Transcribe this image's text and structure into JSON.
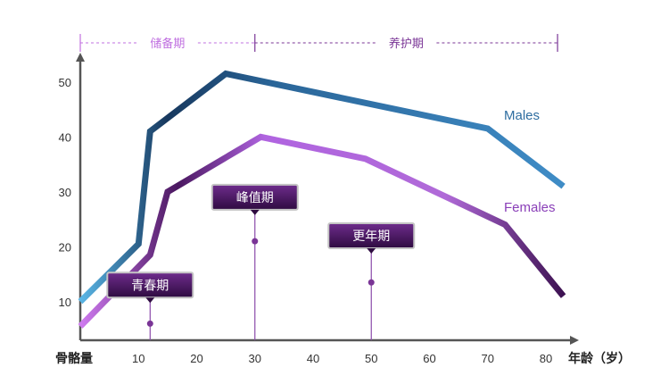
{
  "chart_data": {
    "type": "line",
    "xlabel": "年龄（岁）",
    "ylabel": "骨骼量",
    "xlim": [
      0,
      85
    ],
    "ylim": [
      5,
      55
    ],
    "x_ticks": [
      10,
      20,
      30,
      40,
      50,
      60,
      70,
      80
    ],
    "y_ticks": [
      10,
      20,
      30,
      40,
      50
    ],
    "grid": false,
    "series": [
      {
        "name": "Males",
        "color": "#2e6da0",
        "points": [
          [
            0,
            10
          ],
          [
            10,
            20.5
          ],
          [
            12,
            41
          ],
          [
            25,
            51.5
          ],
          [
            70,
            41.5
          ],
          [
            83,
            31
          ]
        ]
      },
      {
        "name": "Females",
        "color": "#8a3fb8",
        "points": [
          [
            0,
            5.5
          ],
          [
            12,
            18.5
          ],
          [
            15,
            30
          ],
          [
            31,
            40
          ],
          [
            49,
            36
          ],
          [
            73,
            24
          ],
          [
            83,
            11
          ]
        ]
      }
    ],
    "phases": [
      {
        "label": "储备期",
        "from": 0,
        "to": 30,
        "color": "#c070e0"
      },
      {
        "label": "养护期",
        "from": 30,
        "to": 82,
        "color": "#7a3596"
      }
    ],
    "callouts": [
      {
        "label": "青春期",
        "x": 12,
        "y": 6,
        "box_y": 13
      },
      {
        "label": "峰值期",
        "x": 30,
        "y": 21,
        "box_y": 29
      },
      {
        "label": "更年期",
        "x": 50,
        "y": 13.5,
        "box_y": 22
      }
    ]
  }
}
